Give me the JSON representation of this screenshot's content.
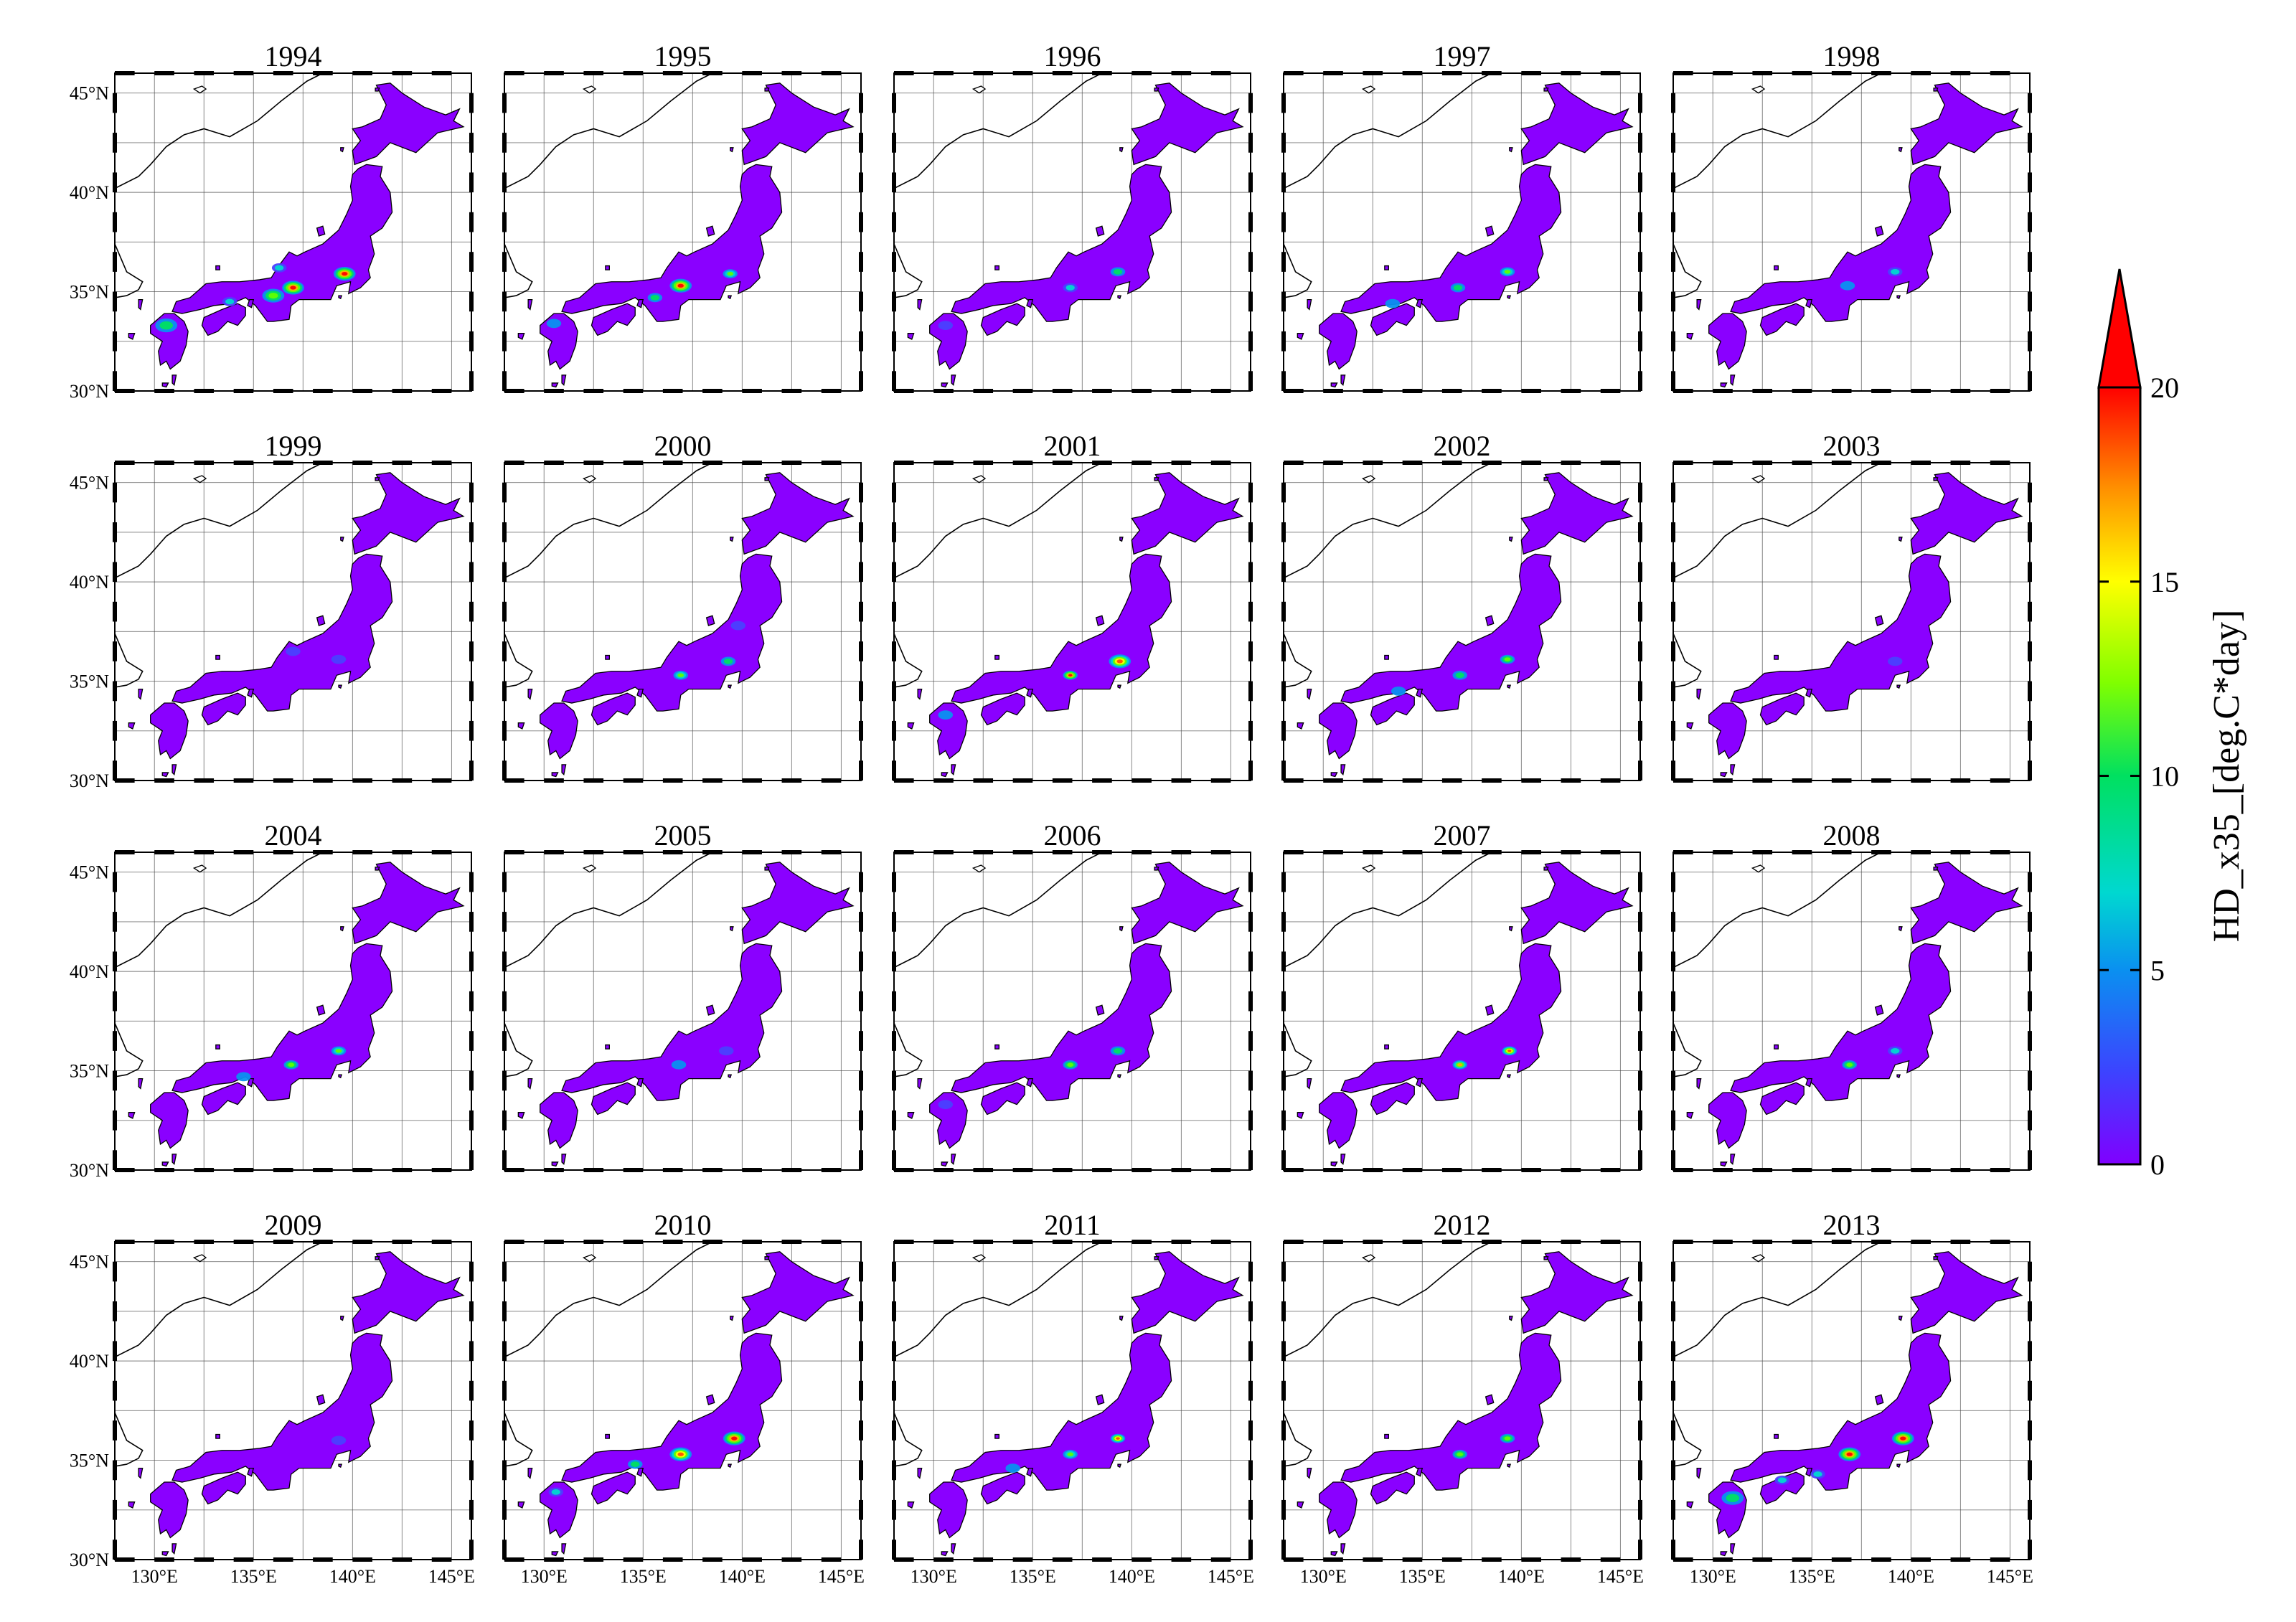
{
  "figure": {
    "panel_titles": [
      "1994",
      "1995",
      "1996",
      "1997",
      "1998",
      "1999",
      "2000",
      "2001",
      "2002",
      "2003",
      "2004",
      "2005",
      "2006",
      "2007",
      "2008",
      "2009",
      "2010",
      "2011",
      "2012",
      "2013"
    ],
    "lat_labels": [
      "45°N",
      "40°N",
      "35°N",
      "30°N"
    ],
    "lon_labels": [
      "130°E",
      "135°E",
      "140°E",
      "145°E"
    ],
    "map_extent": {
      "lon": [
        128,
        146
      ],
      "lat": [
        30,
        46
      ]
    },
    "colorbar": {
      "label": "HD_x35_[deg.C*day]",
      "ticks": [
        "0",
        "5",
        "10",
        "15",
        "20"
      ],
      "range": [
        0,
        20
      ],
      "extend": "max",
      "colors": [
        "#8000ff",
        "#4a40ff",
        "#0a90f0",
        "#00d8d0",
        "#00e060",
        "#60ff00",
        "#ffff00",
        "#ffb000",
        "#ff5000",
        "#ff0000"
      ]
    },
    "land_color": "#8a00ff",
    "hotspots": [
      [
        [
          137.0,
          35.2,
          3,
          20
        ],
        [
          139.6,
          35.9,
          3,
          20
        ],
        [
          136.0,
          34.8,
          3,
          12
        ],
        [
          130.6,
          33.3,
          3,
          8
        ],
        [
          133.8,
          34.5,
          2,
          6
        ],
        [
          136.3,
          36.2,
          2,
          6
        ]
      ],
      [
        [
          136.9,
          35.3,
          3,
          20
        ],
        [
          139.4,
          35.9,
          2,
          10
        ],
        [
          135.6,
          34.7,
          2,
          8
        ],
        [
          130.5,
          33.4,
          2,
          4
        ]
      ],
      [
        [
          139.3,
          36.0,
          2,
          8
        ],
        [
          136.9,
          35.2,
          2,
          6
        ],
        [
          130.6,
          33.3,
          2,
          3
        ]
      ],
      [
        [
          139.3,
          36.0,
          2,
          10
        ],
        [
          136.8,
          35.2,
          2,
          8
        ],
        [
          133.5,
          34.4,
          2,
          4
        ]
      ],
      [
        [
          139.2,
          36.0,
          2,
          6
        ],
        [
          136.8,
          35.3,
          2,
          4
        ]
      ],
      [
        [
          139.3,
          36.1,
          2,
          3
        ],
        [
          137.0,
          36.5,
          2,
          3
        ]
      ],
      [
        [
          136.9,
          35.3,
          2,
          10
        ],
        [
          139.3,
          36.0,
          2,
          8
        ],
        [
          139.8,
          37.8,
          2,
          3
        ]
      ],
      [
        [
          136.9,
          35.3,
          2,
          20
        ],
        [
          139.4,
          36.0,
          3,
          18
        ],
        [
          130.6,
          33.3,
          2,
          4
        ]
      ],
      [
        [
          136.9,
          35.3,
          2,
          8
        ],
        [
          139.3,
          36.1,
          2,
          12
        ],
        [
          133.8,
          34.5,
          2,
          4
        ]
      ],
      [
        [
          139.2,
          36.0,
          2,
          3
        ]
      ],
      [
        [
          136.9,
          35.3,
          2,
          12
        ],
        [
          139.3,
          36.0,
          2,
          10
        ],
        [
          134.5,
          34.7,
          2,
          4
        ]
      ],
      [
        [
          136.8,
          35.3,
          2,
          4
        ],
        [
          139.2,
          36.0,
          2,
          3
        ]
      ],
      [
        [
          136.9,
          35.3,
          2,
          12
        ],
        [
          139.3,
          36.0,
          2,
          8
        ],
        [
          130.6,
          33.3,
          2,
          3
        ]
      ],
      [
        [
          136.9,
          35.3,
          2,
          15
        ],
        [
          139.4,
          36.0,
          2,
          18
        ]
      ],
      [
        [
          136.9,
          35.3,
          2,
          12
        ],
        [
          139.2,
          36.0,
          2,
          6
        ]
      ],
      [
        [
          139.3,
          36.0,
          2,
          3
        ]
      ],
      [
        [
          139.6,
          36.1,
          3,
          20
        ],
        [
          136.9,
          35.3,
          3,
          18
        ],
        [
          134.6,
          34.8,
          2,
          8
        ],
        [
          130.6,
          33.4,
          2,
          6
        ]
      ],
      [
        [
          139.3,
          36.1,
          2,
          18
        ],
        [
          136.9,
          35.3,
          2,
          10
        ],
        [
          134.0,
          34.6,
          2,
          4
        ]
      ],
      [
        [
          139.3,
          36.1,
          2,
          12
        ],
        [
          136.9,
          35.3,
          2,
          12
        ]
      ],
      [
        [
          136.9,
          35.3,
          3,
          20
        ],
        [
          139.6,
          36.1,
          3,
          20
        ],
        [
          131.0,
          33.1,
          3,
          8
        ],
        [
          133.5,
          34.0,
          2,
          6
        ],
        [
          135.3,
          34.3,
          2,
          6
        ]
      ]
    ]
  }
}
